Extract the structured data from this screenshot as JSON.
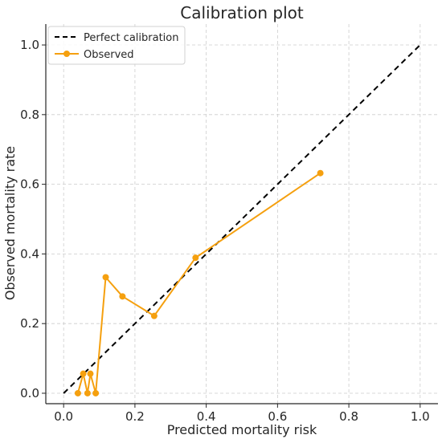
{
  "chart_data": {
    "type": "line",
    "title": "Calibration plot",
    "xlabel": "Predicted mortality risk",
    "ylabel": "Observed mortality rate",
    "xlim": [
      -0.05,
      1.05
    ],
    "ylim": [
      -0.03,
      1.06
    ],
    "xticks": [
      0.0,
      0.2,
      0.4,
      0.6,
      0.8,
      1.0
    ],
    "yticks": [
      0.0,
      0.2,
      0.4,
      0.6,
      0.8,
      1.0
    ],
    "xtick_labels": [
      "0.0",
      "0.2",
      "0.4",
      "0.6",
      "0.8",
      "1.0"
    ],
    "ytick_labels": [
      "0.0",
      "0.2",
      "0.4",
      "0.6",
      "0.8",
      "1.0"
    ],
    "grid": true,
    "legend_position": "top-left",
    "series": [
      {
        "name": "Perfect calibration",
        "style": "dashed",
        "color": "#000000",
        "x": [
          0.0,
          1.0
        ],
        "y": [
          0.0,
          1.0
        ]
      },
      {
        "name": "Observed",
        "style": "solid-markers",
        "color": "#F5A00F",
        "x": [
          0.04,
          0.055,
          0.067,
          0.075,
          0.09,
          0.118,
          0.165,
          0.254,
          0.37,
          0.72
        ],
        "y": [
          0.0,
          0.056,
          0.0,
          0.056,
          0.0,
          0.333,
          0.278,
          0.222,
          0.389,
          0.632
        ]
      }
    ]
  }
}
